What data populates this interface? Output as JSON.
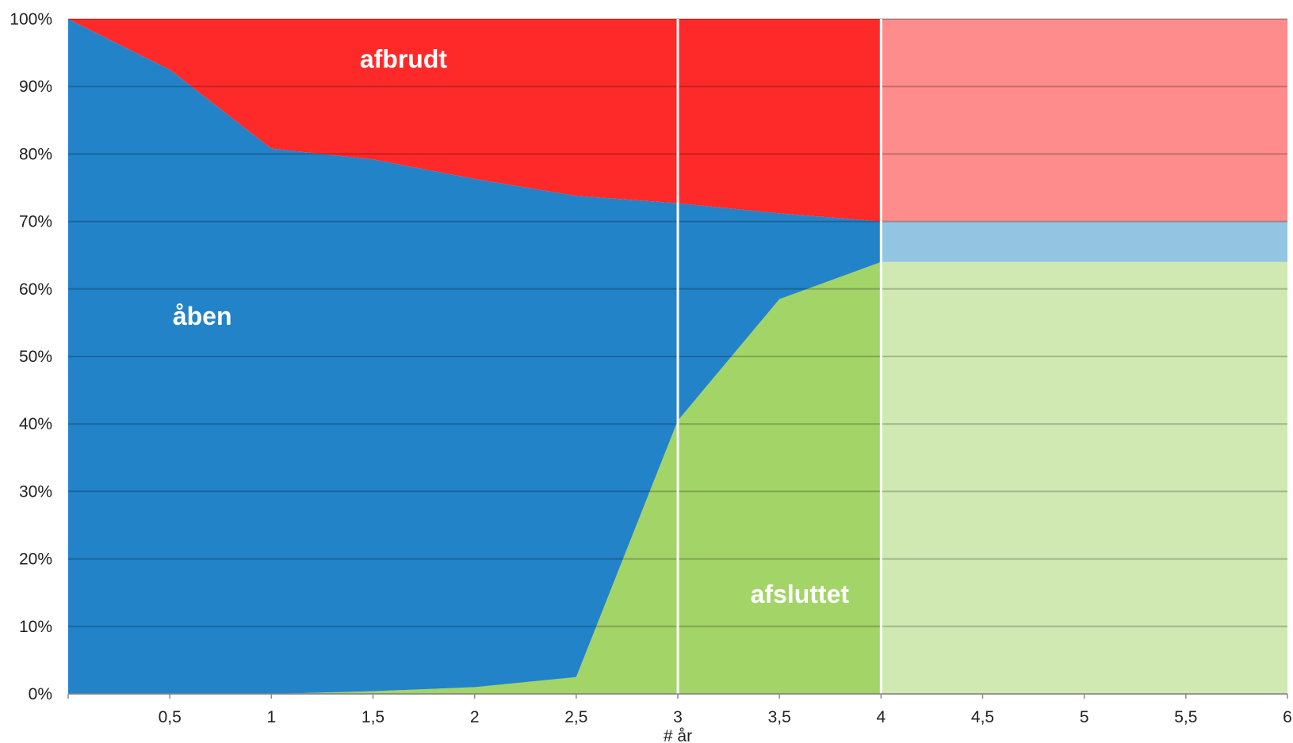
{
  "chart_data": {
    "type": "area",
    "stacked": true,
    "x": [
      0,
      0.5,
      1,
      1.5,
      2,
      2.5,
      3,
      3.5,
      4
    ],
    "xlim": [
      0,
      6
    ],
    "ylim": [
      0,
      100
    ],
    "x_ticks": [
      "0,5",
      "1",
      "1,5",
      "2",
      "2,5",
      "3",
      "3,5",
      "4",
      "4,5",
      "5",
      "5,5",
      "6"
    ],
    "x_tick_values": [
      0.5,
      1,
      1.5,
      2,
      2.5,
      3,
      3.5,
      4,
      4.5,
      5,
      5.5,
      6
    ],
    "y_ticks": [
      "0%",
      "10%",
      "20%",
      "30%",
      "40%",
      "50%",
      "60%",
      "70%",
      "80%",
      "90%",
      "100%"
    ],
    "y_tick_values": [
      0,
      10,
      20,
      30,
      40,
      50,
      60,
      70,
      80,
      90,
      100
    ],
    "xlabel": "# år",
    "grid": true,
    "vertical_markers": [
      3,
      4
    ],
    "projection": {
      "from_x": 4,
      "to_x": 6,
      "afsluttet": 64,
      "aaben": 6,
      "afbrudt": 30
    },
    "series": [
      {
        "name": "afsluttet",
        "color": "#a3d468",
        "faded_color": "#d0e9b2",
        "values": [
          0,
          0,
          0,
          0.4,
          1,
          2.5,
          40.5,
          58.5,
          64
        ]
      },
      {
        "name": "åben",
        "color": "#2383c8",
        "faded_color": "#93c4e2",
        "values": [
          100,
          92.5,
          80.8,
          78.8,
          75.3,
          71.3,
          32.2,
          12.7,
          6
        ]
      },
      {
        "name": "afbrudt",
        "color": "#fe2a2a",
        "faded_color": "#fe8c8c",
        "values": [
          0,
          7.5,
          19.2,
          20.8,
          23.7,
          26.2,
          27.3,
          28.8,
          30
        ]
      }
    ]
  }
}
